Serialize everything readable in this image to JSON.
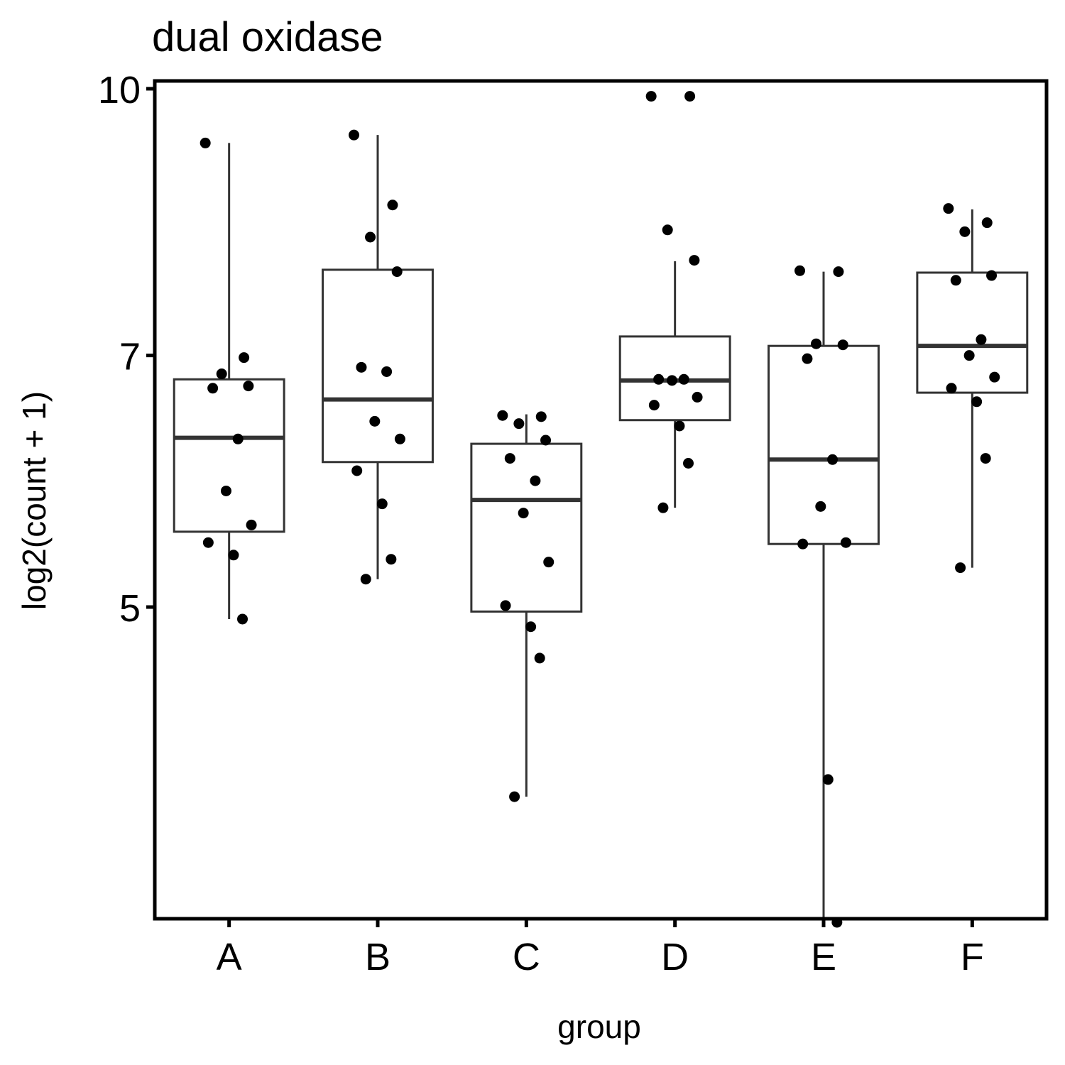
{
  "chart_data": {
    "type": "box",
    "title": "dual oxidase",
    "xlabel": "group",
    "ylabel": "log2(count + 1)",
    "yscale": "log2",
    "ylim": [
      3.3,
      10.1
    ],
    "yticks": [
      5,
      7,
      10
    ],
    "grid": false,
    "categories": [
      "A",
      "B",
      "C",
      "D",
      "E",
      "F"
    ],
    "boxes": [
      {
        "group": "A",
        "whisker_low": 4.92,
        "q1": 5.53,
        "median": 6.27,
        "q3": 6.78,
        "whisker_high": 9.3
      },
      {
        "group": "B",
        "whisker_low": 5.19,
        "q1": 6.07,
        "median": 6.6,
        "q3": 7.85,
        "whisker_high": 9.4
      },
      {
        "group": "C",
        "whisker_low": 3.88,
        "q1": 4.97,
        "median": 5.77,
        "q3": 6.22,
        "whisker_high": 6.47
      },
      {
        "group": "D",
        "whisker_low": 5.71,
        "q1": 6.42,
        "median": 6.77,
        "q3": 7.18,
        "whisker_high": 7.94
      },
      {
        "group": "E",
        "whisker_low": 3.28,
        "q1": 5.44,
        "median": 6.09,
        "q3": 7.09,
        "whisker_high": 7.83
      },
      {
        "group": "F",
        "whisker_low": 5.27,
        "q1": 6.66,
        "median": 7.09,
        "q3": 7.82,
        "whisker_high": 8.51
      }
    ],
    "points": [
      {
        "group": "A",
        "values": [
          9.3,
          6.98,
          6.83,
          6.72,
          6.7,
          6.26,
          5.84,
          5.58,
          5.45,
          5.36,
          4.92
        ]
      },
      {
        "group": "B",
        "values": [
          9.4,
          8.56,
          8.2,
          7.83,
          6.89,
          6.85,
          6.41,
          6.26,
          6.0,
          5.74,
          5.33,
          5.19
        ]
      },
      {
        "group": "C",
        "values": [
          6.46,
          6.45,
          6.39,
          6.25,
          6.1,
          5.92,
          5.67,
          5.31,
          5.01,
          4.87,
          4.67,
          3.88
        ]
      },
      {
        "group": "D",
        "values": [
          9.9,
          9.9,
          8.28,
          7.95,
          6.78,
          6.78,
          6.77,
          6.62,
          6.55,
          6.37,
          6.06,
          5.71
        ]
      },
      {
        "group": "E",
        "values": [
          7.84,
          7.83,
          7.11,
          7.1,
          6.97,
          6.09,
          5.72,
          5.45,
          5.44,
          3.97,
          3.28
        ]
      },
      {
        "group": "F",
        "values": [
          8.52,
          8.36,
          8.26,
          7.79,
          7.74,
          7.15,
          7.0,
          6.8,
          6.7,
          6.58,
          6.1,
          5.27
        ]
      }
    ]
  }
}
